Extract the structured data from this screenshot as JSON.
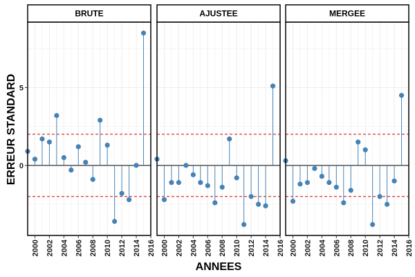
{
  "chart_data": {
    "type": "lollipop",
    "xlabel": "ANNEES",
    "ylabel": "ERREUR STANDARD",
    "xlim": [
      1999,
      2016
    ],
    "ylim": [
      -4.5,
      9.2
    ],
    "x_ticks": [
      2000,
      2002,
      2004,
      2006,
      2008,
      2010,
      2012,
      2014,
      2016
    ],
    "x_tick_labels": [
      "2000",
      "2002",
      "2004",
      "2006",
      "2008",
      "2010",
      "2012",
      "2014",
      "2016"
    ],
    "y_ticks": [
      0,
      5
    ],
    "y_tick_labels": [
      "0",
      "5"
    ],
    "reference_lines": [
      2,
      -2
    ],
    "grid": true,
    "colors": {
      "points": "#4682b4",
      "stems": "#4682b4",
      "reference_line": "#cc0000",
      "zero_line": "#000000",
      "grid": "#ebebeb",
      "strip_fill": "#ffffff"
    },
    "panels": [
      {
        "name": "BRUTE",
        "x": [
          1999,
          2000,
          2001,
          2002,
          2003,
          2004,
          2005,
          2006,
          2007,
          2008,
          2009,
          2010,
          2011,
          2012,
          2013,
          2014,
          2015
        ],
        "values": [
          0.9,
          0.4,
          1.7,
          1.5,
          3.2,
          0.5,
          -0.3,
          1.2,
          0.2,
          -0.9,
          2.9,
          1.3,
          -3.6,
          -1.8,
          -2.2,
          0.0,
          8.5
        ]
      },
      {
        "name": "AJUSTEE",
        "x": [
          1999,
          2000,
          2001,
          2002,
          2003,
          2004,
          2005,
          2006,
          2007,
          2008,
          2009,
          2010,
          2011,
          2012,
          2013,
          2014,
          2015
        ],
        "values": [
          0.4,
          -2.2,
          -1.1,
          -1.1,
          0.0,
          -0.6,
          -1.1,
          -1.3,
          -2.4,
          -1.4,
          1.7,
          -0.8,
          -3.8,
          -2.0,
          -2.5,
          -2.6,
          5.1
        ]
      },
      {
        "name": "MERGEE",
        "x": [
          1999,
          2000,
          2001,
          2002,
          2003,
          2004,
          2005,
          2006,
          2007,
          2008,
          2009,
          2010,
          2011,
          2012,
          2013,
          2014,
          2015
        ],
        "values": [
          0.3,
          -2.3,
          -1.2,
          -1.1,
          -0.2,
          -0.7,
          -1.1,
          -1.4,
          -2.4,
          -1.6,
          1.5,
          1.0,
          -3.8,
          -2.0,
          -2.5,
          -1.0,
          4.5
        ]
      }
    ]
  }
}
